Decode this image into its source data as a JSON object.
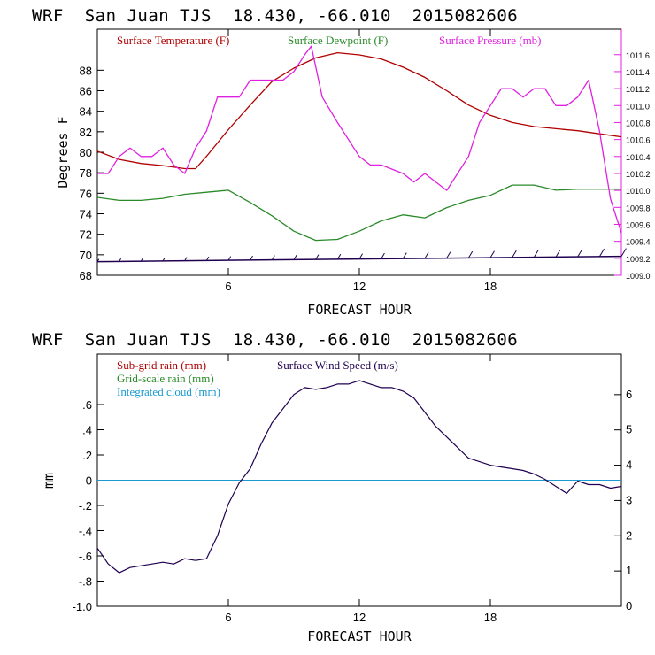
{
  "colors": {
    "temperature": "#b00000",
    "dewpoint": "#2a8a2a",
    "pressure": "#e020e0",
    "subgrid_rain": "#b00000",
    "gridscale_rain": "#2a8a2a",
    "integrated_cloud": "#1a9ad0",
    "wind_speed": "#200050"
  },
  "top_panel": {
    "title": "WRF  San Juan TJS  18.430, -66.010  2015082606",
    "xlabel": "FORECAST HOUR",
    "ylabel": "Degrees F",
    "legend": [
      "Surface Temperature (F)",
      "Surface Dewpoint (F)",
      "Surface Pressure (mb)"
    ]
  },
  "bottom_panel": {
    "title": "WRF  San Juan TJS  18.430, -66.010  2015082606",
    "xlabel": "FORECAST HOUR",
    "ylabel": "mm",
    "legend": [
      "Sub-grid rain (mm)",
      "Grid-scale rain (mm)",
      "Integrated cloud (mm)",
      "Surface Wind Speed (m/s)"
    ]
  },
  "chart_data": [
    {
      "type": "line",
      "title": "WRF  San Juan TJS  18.430, -66.010  2015082606",
      "xlabel": "FORECAST HOUR",
      "ylabel": "Degrees F",
      "xlim": [
        0,
        24
      ],
      "ylim": [
        68,
        92
      ],
      "y2lim": [
        1009.0,
        1011.9
      ],
      "x_ticks": [
        "6",
        "12",
        "18"
      ],
      "y_ticks": [
        "68",
        "70",
        "72",
        "74",
        "76",
        "78",
        "80",
        "82",
        "84",
        "86",
        "88"
      ],
      "y2_ticks": [
        "1009.0",
        "1009.2",
        "1009.4",
        "1009.6",
        "1009.8",
        "1010.0",
        "1010.2",
        "1010.4",
        "1010.6",
        "1010.8",
        "1011.0",
        "1011.2",
        "1011.4",
        "1011.6"
      ],
      "grid": false,
      "legend_position": "top",
      "series": [
        {
          "name": "Surface Temperature (F)",
          "axis": "left",
          "x": [
            0,
            1,
            2,
            3,
            4,
            4.5,
            5,
            6,
            7,
            8,
            9,
            10,
            11,
            12,
            13,
            14,
            15,
            16,
            17,
            18,
            19,
            20,
            21,
            22,
            23,
            24
          ],
          "y": [
            80.1,
            79.3,
            78.9,
            78.7,
            78.4,
            78.4,
            79.6,
            82.2,
            84.6,
            86.9,
            88.2,
            89.2,
            89.7,
            89.5,
            89.1,
            88.3,
            87.3,
            86.0,
            84.6,
            83.6,
            82.9,
            82.5,
            82.3,
            82.1,
            81.8,
            81.5
          ]
        },
        {
          "name": "Surface Dewpoint (F)",
          "axis": "left",
          "x": [
            0,
            1,
            2,
            3,
            4,
            5,
            6,
            7,
            8,
            9,
            10,
            11,
            12,
            13,
            14,
            15,
            16,
            17,
            18,
            19,
            20,
            21,
            22,
            23,
            24
          ],
          "y": [
            75.6,
            75.3,
            75.3,
            75.5,
            75.9,
            76.1,
            76.3,
            75.1,
            73.8,
            72.3,
            71.4,
            71.5,
            72.3,
            73.3,
            73.9,
            73.6,
            74.6,
            75.3,
            75.8,
            76.8,
            76.8,
            76.3,
            76.4,
            76.4,
            76.4
          ]
        },
        {
          "name": "Surface Pressure (mb)",
          "axis": "right",
          "x": [
            0,
            0.5,
            1,
            1.5,
            2,
            2.5,
            3,
            3.5,
            4,
            4.5,
            5,
            5.5,
            6,
            6.5,
            7,
            7.5,
            8,
            8.5,
            9,
            9.5,
            9.8,
            10.3,
            11,
            12,
            12.5,
            13,
            14,
            14.5,
            15,
            15.5,
            16,
            16.5,
            17,
            17.5,
            18,
            18.5,
            19,
            19.5,
            20,
            20.5,
            21,
            21.5,
            22,
            22.5,
            23,
            23.5,
            24
          ],
          "y": [
            1010.2,
            1010.2,
            1010.4,
            1010.5,
            1010.4,
            1010.4,
            1010.5,
            1010.3,
            1010.2,
            1010.5,
            1010.7,
            1011.1,
            1011.1,
            1011.1,
            1011.3,
            1011.3,
            1011.3,
            1011.3,
            1011.4,
            1011.6,
            1011.7,
            1011.1,
            1010.8,
            1010.4,
            1010.3,
            1010.3,
            1010.2,
            1010.1,
            1010.2,
            1010.1,
            1010.0,
            1010.2,
            1010.4,
            1010.8,
            1011.0,
            1011.2,
            1011.2,
            1011.1,
            1011.2,
            1011.2,
            1011.0,
            1011.0,
            1011.1,
            1011.3,
            1010.7,
            1009.9,
            1009.5
          ]
        },
        {
          "name": "Wind barbs",
          "axis": "left",
          "kind": "barbs",
          "x": [
            0,
            1,
            2,
            3,
            4,
            5,
            6,
            7,
            8,
            9,
            10,
            11,
            12,
            13,
            14,
            15,
            16,
            17,
            18,
            19,
            20,
            21,
            22,
            23,
            24
          ],
          "y": [
            69.5,
            69.5,
            69.5,
            69.5,
            69.5,
            69.5,
            69.5,
            69.5,
            69.5,
            69.5,
            69.5,
            69.5,
            69.5,
            69.5,
            69.5,
            69.5,
            69.5,
            69.5,
            69.5,
            69.5,
            69.5,
            69.5,
            69.5,
            69.5,
            69.5
          ]
        }
      ]
    },
    {
      "type": "line",
      "title": "WRF  San Juan TJS  18.430, -66.010  2015082606",
      "xlabel": "FORECAST HOUR",
      "ylabel": "mm",
      "xlim": [
        0,
        24
      ],
      "ylim": [
        -1.0,
        1.0
      ],
      "y2lim": [
        0,
        7.15
      ],
      "x_ticks": [
        "6",
        "12",
        "18"
      ],
      "y_ticks": [
        "-1.0",
        "-.8",
        "-.6",
        "-.4",
        "-.2",
        "0",
        ".2",
        ".4",
        ".6"
      ],
      "y2_ticks": [
        "0",
        "1",
        "2",
        "3",
        "4",
        "5",
        "6"
      ],
      "grid": false,
      "legend_position": "top-left",
      "series": [
        {
          "name": "Integrated cloud (mm)",
          "axis": "left",
          "x": [
            0,
            24
          ],
          "y": [
            0,
            0
          ]
        },
        {
          "name": "Surface Wind Speed (m/s)",
          "axis": "right",
          "x": [
            0,
            0.5,
            1,
            1.5,
            2,
            2.5,
            3,
            3.5,
            4,
            4.5,
            5,
            5.5,
            6,
            6.5,
            7,
            7.5,
            8,
            8.5,
            9,
            9.5,
            10,
            10.5,
            11,
            11.5,
            12,
            12.5,
            13,
            13.5,
            14,
            14.5,
            15,
            15.5,
            16,
            16.5,
            17,
            17.5,
            18,
            18.5,
            19,
            19.5,
            20,
            20.5,
            21,
            21.5,
            22,
            22.5,
            23,
            23.5,
            24
          ],
          "y": [
            1.65,
            1.2,
            0.95,
            1.1,
            1.15,
            1.2,
            1.25,
            1.2,
            1.35,
            1.3,
            1.35,
            2.0,
            2.9,
            3.5,
            3.9,
            4.6,
            5.2,
            5.6,
            6.0,
            6.2,
            6.15,
            6.2,
            6.3,
            6.3,
            6.4,
            6.3,
            6.2,
            6.2,
            6.1,
            5.9,
            5.5,
            5.1,
            4.8,
            4.5,
            4.2,
            4.1,
            4.0,
            3.95,
            3.9,
            3.85,
            3.75,
            3.6,
            3.4,
            3.2,
            3.55,
            3.45,
            3.45,
            3.35,
            3.4
          ]
        }
      ]
    }
  ]
}
